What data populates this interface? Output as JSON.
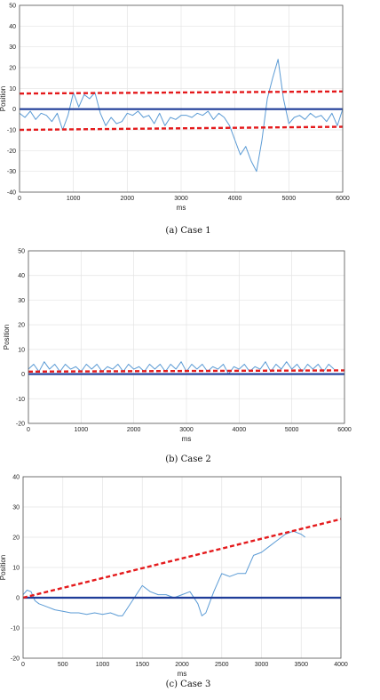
{
  "chart_data": [
    {
      "type": "line",
      "caption": "(a) Case 1",
      "xlabel": "ms",
      "ylabel": "Position",
      "xlim": [
        0,
        6000
      ],
      "ylim": [
        -40,
        50
      ],
      "xticks": [
        0,
        1000,
        2000,
        3000,
        4000,
        5000,
        6000
      ],
      "yticks": [
        -40,
        -30,
        -20,
        -10,
        0,
        10,
        20,
        30,
        40,
        50
      ],
      "grid": true,
      "series": [
        {
          "role": "measured",
          "style": "solid",
          "color": "#5b9bd5",
          "x": [
            0,
            100,
            200,
            300,
            400,
            500,
            600,
            700,
            800,
            900,
            1000,
            1100,
            1200,
            1300,
            1400,
            1500,
            1600,
            1700,
            1800,
            1900,
            2000,
            2100,
            2200,
            2300,
            2400,
            2500,
            2600,
            2700,
            2800,
            2900,
            3000,
            3100,
            3200,
            3300,
            3400,
            3500,
            3600,
            3700,
            3800,
            3900,
            4000,
            4100,
            4200,
            4300,
            4400,
            4500,
            4600,
            4700,
            4800,
            4900,
            5000,
            5100,
            5200,
            5300,
            5400,
            5500,
            5600,
            5700,
            5800,
            5900,
            6000
          ],
          "y": [
            -2,
            -4,
            -1,
            -5,
            -2,
            -3,
            -6,
            -2,
            -10,
            -3,
            8,
            1,
            7,
            5,
            8,
            -2,
            -8,
            -4,
            -7,
            -6,
            -2,
            -3,
            -1,
            -4,
            -3,
            -7,
            -2,
            -8,
            -4,
            -5,
            -3,
            -3,
            -4,
            -2,
            -3,
            -1,
            -5,
            -2,
            -4,
            -8,
            -15,
            -22,
            -18,
            -25,
            -30,
            -15,
            5,
            15,
            24,
            5,
            -7,
            -4,
            -3,
            -5,
            -2,
            -4,
            -3,
            -6,
            -2,
            -8,
            0
          ]
        },
        {
          "role": "reference",
          "style": "solid",
          "color": "#1f3d99",
          "x": [
            0,
            6000
          ],
          "y": [
            0,
            0
          ]
        },
        {
          "role": "upper-bound",
          "style": "dashed",
          "color": "#e41a1c",
          "x": [
            0,
            6000
          ],
          "y": [
            7.5,
            8.5
          ]
        },
        {
          "role": "lower-bound",
          "style": "dashed",
          "color": "#e41a1c",
          "x": [
            0,
            6000
          ],
          "y": [
            -10,
            -8.5
          ]
        }
      ]
    },
    {
      "type": "line",
      "caption": "(b)  Case 2",
      "xlabel": "ms",
      "ylabel": "Position",
      "xlim": [
        0,
        6000
      ],
      "ylim": [
        -20,
        50
      ],
      "xticks": [
        0,
        1000,
        2000,
        3000,
        4000,
        5000,
        6000
      ],
      "yticks": [
        -20,
        -10,
        0,
        10,
        20,
        30,
        40,
        50
      ],
      "grid": true,
      "series": [
        {
          "role": "measured",
          "style": "solid",
          "color": "#5b9bd5",
          "x": [
            0,
            100,
            200,
            300,
            400,
            500,
            600,
            700,
            800,
            900,
            1000,
            1100,
            1200,
            1300,
            1400,
            1500,
            1600,
            1700,
            1800,
            1900,
            2000,
            2100,
            2200,
            2300,
            2400,
            2500,
            2600,
            2700,
            2800,
            2900,
            3000,
            3100,
            3200,
            3300,
            3400,
            3500,
            3600,
            3700,
            3800,
            3900,
            4000,
            4100,
            4200,
            4300,
            4400,
            4500,
            4600,
            4700,
            4800,
            4900,
            5000,
            5100,
            5200,
            5300,
            5400,
            5500,
            5600,
            5700,
            5800
          ],
          "y": [
            2,
            4,
            1,
            5,
            2,
            4,
            1,
            4,
            2,
            3,
            1,
            4,
            2,
            4,
            1,
            3,
            2,
            4,
            1,
            4,
            2,
            3,
            1,
            4,
            2,
            4,
            1,
            4,
            2,
            5,
            1,
            4,
            2,
            4,
            1,
            3,
            2,
            4,
            0,
            3,
            2,
            4,
            1,
            3,
            2,
            5,
            1,
            4,
            2,
            5,
            2,
            4,
            1,
            4,
            2,
            4,
            1,
            4,
            2
          ]
        },
        {
          "role": "reference",
          "style": "solid",
          "color": "#1f3d99",
          "x": [
            0,
            6000
          ],
          "y": [
            0,
            0
          ]
        },
        {
          "role": "threshold",
          "style": "dashed",
          "color": "#e41a1c",
          "x": [
            0,
            6000
          ],
          "y": [
            1,
            1.5
          ]
        }
      ]
    },
    {
      "type": "line",
      "caption": "(c) Case 3",
      "xlabel": "ms",
      "ylabel": "Position",
      "xlim": [
        0,
        4000
      ],
      "ylim": [
        -20,
        40
      ],
      "xticks": [
        0,
        500,
        1000,
        1500,
        2000,
        2500,
        3000,
        3500,
        4000
      ],
      "yticks": [
        -20,
        -10,
        0,
        10,
        20,
        30,
        40
      ],
      "grid": true,
      "series": [
        {
          "role": "measured",
          "style": "solid",
          "color": "#5b9bd5",
          "x": [
            0,
            50,
            100,
            150,
            200,
            300,
            400,
            500,
            600,
            700,
            800,
            900,
            1000,
            1100,
            1200,
            1250,
            1300,
            1400,
            1500,
            1600,
            1700,
            1800,
            1900,
            2000,
            2100,
            2200,
            2250,
            2300,
            2400,
            2500,
            2600,
            2700,
            2800,
            2900,
            3000,
            3100,
            3200,
            3300,
            3400,
            3500,
            3550
          ],
          "y": [
            1,
            2.5,
            2,
            -1,
            -2,
            -3,
            -4,
            -4.5,
            -5,
            -5,
            -5.5,
            -5,
            -5.5,
            -5,
            -6,
            -6,
            -4,
            0,
            4,
            2,
            1,
            1,
            0,
            1,
            2,
            -2,
            -6,
            -5,
            2,
            8,
            7,
            8,
            8,
            14,
            15,
            17,
            19,
            21,
            22,
            21,
            20
          ]
        },
        {
          "role": "reference",
          "style": "solid",
          "color": "#1f3d99",
          "x": [
            0,
            4000
          ],
          "y": [
            0,
            0
          ]
        },
        {
          "role": "trend",
          "style": "dashed",
          "color": "#e41a1c",
          "x": [
            0,
            4000
          ],
          "y": [
            0,
            26
          ]
        }
      ]
    }
  ]
}
